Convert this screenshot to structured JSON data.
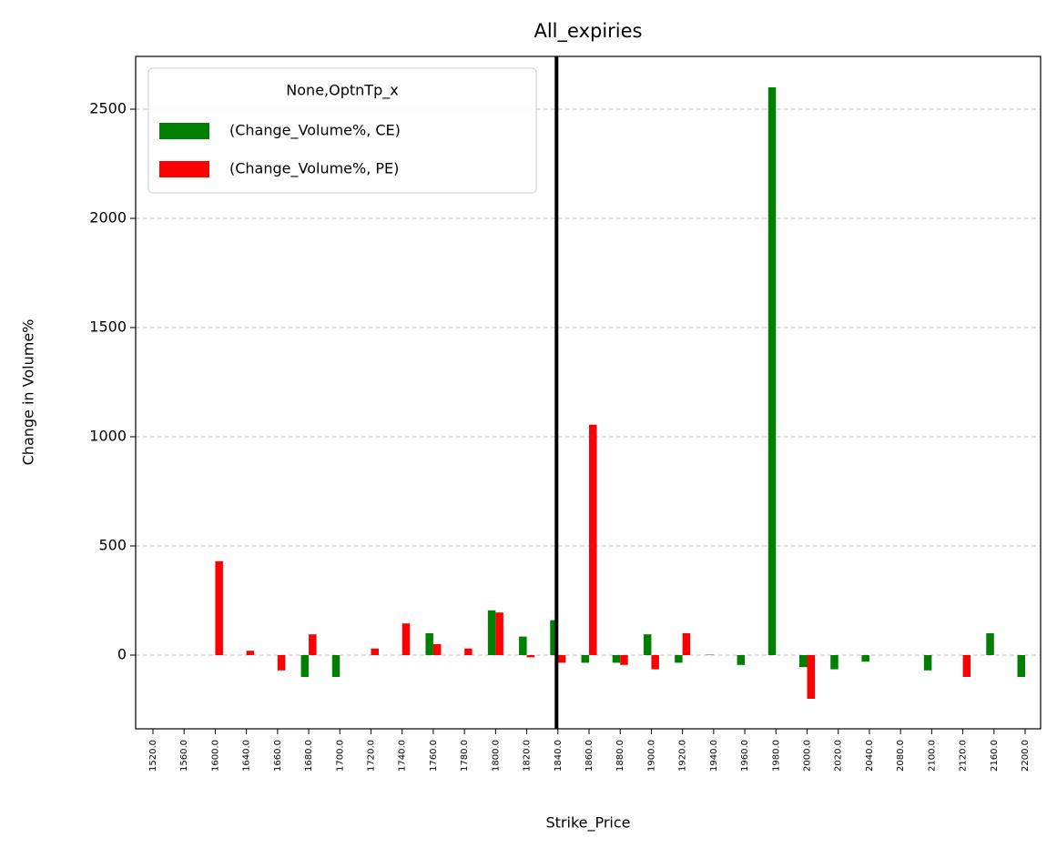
{
  "chart_data": {
    "type": "bar",
    "title": "All_expiries",
    "x_label": "Strike_Price",
    "y_label": "Change in Volume%",
    "categories": [
      "1520.0",
      "1560.0",
      "1600.0",
      "1640.0",
      "1660.0",
      "1680.0",
      "1700.0",
      "1720.0",
      "1740.0",
      "1760.0",
      "1780.0",
      "1800.0",
      "1820.0",
      "1840.0",
      "1860.0",
      "1880.0",
      "1900.0",
      "1920.0",
      "1940.0",
      "1960.0",
      "1980.0",
      "2000.0",
      "2020.0",
      "2040.0",
      "2080.0",
      "2100.0",
      "2120.0",
      "2160.0",
      "2200.0"
    ],
    "series": [
      {
        "name": "(Change_Volume%, CE)",
        "color": "#008000",
        "values": [
          null,
          null,
          null,
          null,
          null,
          -100,
          -100,
          null,
          null,
          100,
          null,
          205,
          85,
          160,
          -35,
          -35,
          95,
          -35,
          2,
          -45,
          2600,
          -55,
          -65,
          -30,
          null,
          -70,
          null,
          100,
          -100
        ]
      },
      {
        "name": "(Change_Volume%, PE)",
        "color": "#ff0000",
        "values": [
          null,
          null,
          430,
          20,
          -70,
          95,
          0,
          30,
          145,
          50,
          30,
          195,
          -10,
          -35,
          1055,
          -45,
          -65,
          100,
          null,
          null,
          null,
          -200,
          null,
          null,
          null,
          null,
          -100,
          null,
          null
        ]
      }
    ],
    "legend_title": "None,OptnTp_x",
    "legend": "upper left",
    "ylim": [
      -337.5,
      2741.7
    ],
    "yticks": [
      0,
      500,
      1000,
      1500,
      2000,
      2500
    ],
    "grid": true,
    "vline_at": "1840.0"
  }
}
